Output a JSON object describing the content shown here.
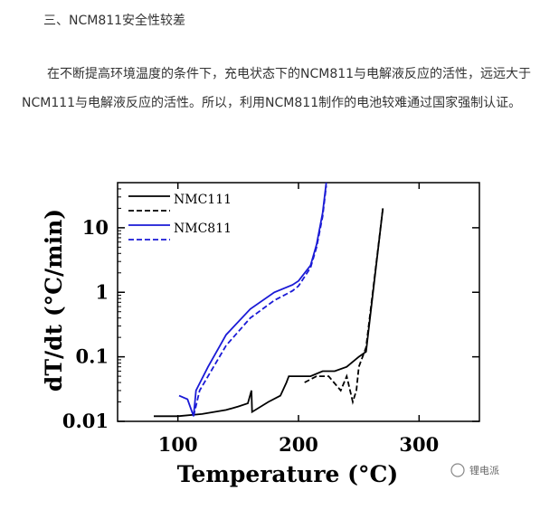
{
  "section_title": "三、NCM811安全性较差",
  "paragraph": "在不断提高环境温度的条件下，充电状态下的NCM811与电解液反应的活性，远远大于NCM111与电解液反应的活性。所以，利用NCM811制作的电池较难通过国家强制认证。",
  "watermark": "锂电派",
  "chart_data": {
    "type": "line",
    "xlabel": "Temperature (°C)",
    "ylabel": "dT/dt (°C/min)",
    "xlim": [
      50,
      350
    ],
    "ylim": [
      0.01,
      50
    ],
    "yscale": "log",
    "grid": false,
    "legend_position": "top-left",
    "x_ticks": [
      "100",
      "200",
      "300"
    ],
    "x_tick_values": [
      100,
      200,
      300
    ],
    "y_ticks": [
      "0.01",
      "0.1",
      "1",
      "10"
    ],
    "y_tick_values": [
      0.01,
      0.1,
      1,
      10
    ],
    "series": [
      {
        "name": "NMC111",
        "style": "solid",
        "color": "#000000",
        "x": [
          80,
          100,
          120,
          140,
          150,
          158,
          161,
          161.5,
          175,
          185,
          190,
          192,
          200,
          210,
          220,
          230,
          240,
          250,
          256,
          270
        ],
        "y": [
          0.012,
          0.012,
          0.013,
          0.015,
          0.017,
          0.019,
          0.03,
          0.014,
          0.02,
          0.025,
          0.04,
          0.05,
          0.05,
          0.05,
          0.06,
          0.06,
          0.07,
          0.1,
          0.12,
          20
        ]
      },
      {
        "name": "",
        "style": "dashed",
        "color": "#000000",
        "x": [
          205,
          215,
          225,
          235,
          240,
          245,
          248,
          250,
          256,
          270
        ],
        "y": [
          0.04,
          0.05,
          0.05,
          0.03,
          0.05,
          0.02,
          0.03,
          0.07,
          0.14,
          20
        ]
      },
      {
        "name": "NMC811",
        "style": "solid",
        "color": "#1a1ad6",
        "x": [
          101,
          108,
          113,
          115,
          125,
          140,
          160,
          180,
          195,
          200,
          210,
          215,
          220,
          223
        ],
        "y": [
          0.025,
          0.022,
          0.012,
          0.03,
          0.07,
          0.22,
          0.55,
          1.0,
          1.3,
          1.5,
          2.6,
          5.5,
          17,
          50
        ]
      },
      {
        "name": "",
        "style": "dashed",
        "color": "#1a1ad6",
        "x": [
          113,
          118,
          125,
          140,
          160,
          180,
          195,
          200,
          210,
          215,
          220,
          223
        ],
        "y": [
          0.012,
          0.03,
          0.05,
          0.15,
          0.4,
          0.75,
          1.05,
          1.25,
          2.4,
          5,
          15,
          45
        ]
      }
    ]
  }
}
